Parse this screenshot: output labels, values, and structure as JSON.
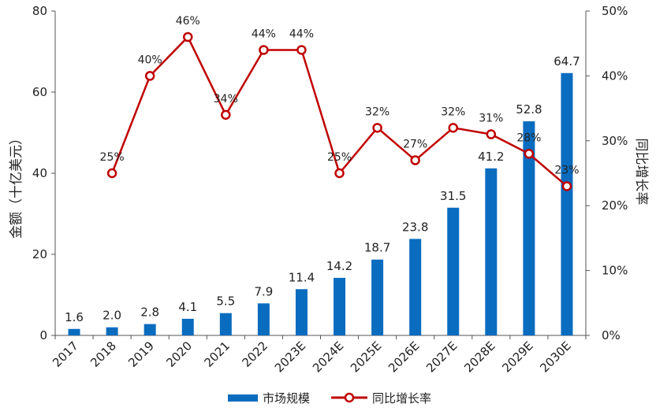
{
  "chart_data": {
    "type": "bar+line",
    "categories": [
      "2017",
      "2018",
      "2019",
      "2020",
      "2021",
      "2022",
      "2023E",
      "2024E",
      "2025E",
      "2026E",
      "2027E",
      "2028E",
      "2029E",
      "2030E"
    ],
    "series": [
      {
        "name": "市场规模",
        "type": "bar",
        "axis": "left",
        "color": "#0a6cbf",
        "values": [
          1.6,
          2.0,
          2.8,
          4.1,
          5.5,
          7.9,
          11.4,
          14.2,
          18.7,
          23.8,
          31.5,
          41.2,
          52.8,
          64.7
        ],
        "labels": [
          "1.6",
          "2.0",
          "2.8",
          "4.1",
          "5.5",
          "7.9",
          "11.4",
          "14.2",
          "18.7",
          "23.8",
          "31.5",
          "41.2",
          "52.8",
          "64.7"
        ]
      },
      {
        "name": "同比增长率",
        "type": "line",
        "axis": "right",
        "color": "#c00000",
        "values": [
          null,
          25,
          40,
          46,
          34,
          44,
          44,
          25,
          32,
          27,
          32,
          31,
          28,
          23
        ],
        "labels": [
          "",
          "25%",
          "40%",
          "46%",
          "34%",
          "44%",
          "44%",
          "25%",
          "32%",
          "27%",
          "32%",
          "31%",
          "28%",
          "23%"
        ]
      }
    ],
    "ylabel": "金额（十亿美元）",
    "y2label": "同比增长率",
    "ylim": [
      0,
      80
    ],
    "y2lim": [
      0,
      50
    ],
    "yticks": [
      "0",
      "20",
      "40",
      "60",
      "80"
    ],
    "y2ticks": [
      "0%",
      "10%",
      "20%",
      "30%",
      "40%",
      "50%"
    ],
    "legend_position": "bottom",
    "grid": false
  }
}
